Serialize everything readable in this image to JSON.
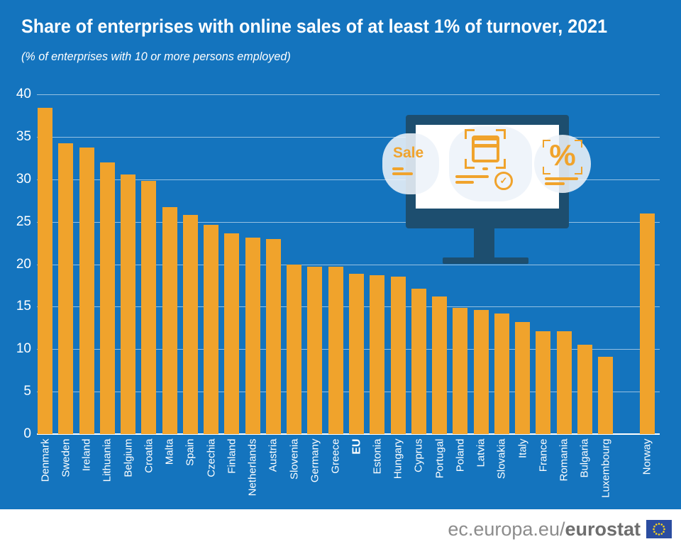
{
  "chart_data": {
    "type": "bar",
    "title": "Share of enterprises with online sales of at least 1% of turnover, 2021",
    "subtitle": "(% of enterprises with 10 or more persons employed)",
    "ylim": [
      0,
      40
    ],
    "yticks": [
      0,
      5,
      10,
      15,
      20,
      25,
      30,
      35,
      40
    ],
    "grid": true,
    "legend_position": "none",
    "bar_color": "#F0A32C",
    "categories": [
      "Denmark",
      "Sweden",
      "Ireland",
      "Lithuania",
      "Belgium",
      "Croatia",
      "Malta",
      "Spain",
      "Czechia",
      "Finland",
      "Netherlands",
      "Austria",
      "Slovenia",
      "Germany",
      "Greece",
      "EU",
      "Estonia",
      "Hungary",
      "Cyprus",
      "Portugal",
      "Poland",
      "Latvia",
      "Slovakia",
      "Italy",
      "France",
      "Romania",
      "Bulgaria",
      "Luxembourg",
      "Norway"
    ],
    "values": [
      38.4,
      34.2,
      33.7,
      32.0,
      30.6,
      29.8,
      26.7,
      25.8,
      24.6,
      23.6,
      23.1,
      23.0,
      20.0,
      19.7,
      19.7,
      18.9,
      18.7,
      18.5,
      17.1,
      16.2,
      14.9,
      14.6,
      14.2,
      13.2,
      12.1,
      12.1,
      10.5,
      9.1,
      26.0
    ],
    "bold_category": "EU",
    "gap_before_category": "Norway"
  },
  "illustration": {
    "sale_label": "Sale",
    "percent_label": "%",
    "check_glyph": "✓",
    "icon_names": [
      "monitor-icon",
      "sale-tag-icon",
      "browser-window-scan-icon",
      "check-circle-icon",
      "percent-scan-icon"
    ],
    "colors": {
      "monitor": "#1D4E6F",
      "accent": "#F0A32C",
      "bubble": "#EDF2F9"
    }
  },
  "footer": {
    "url_regular": "ec.europa.eu/",
    "url_bold": "eurostat",
    "flag": "eu-flag-icon"
  },
  "colors": {
    "background": "#1474BE",
    "bar": "#F0A32C",
    "text": "#FFFFFF",
    "footer_text": "#8C8C8C"
  }
}
